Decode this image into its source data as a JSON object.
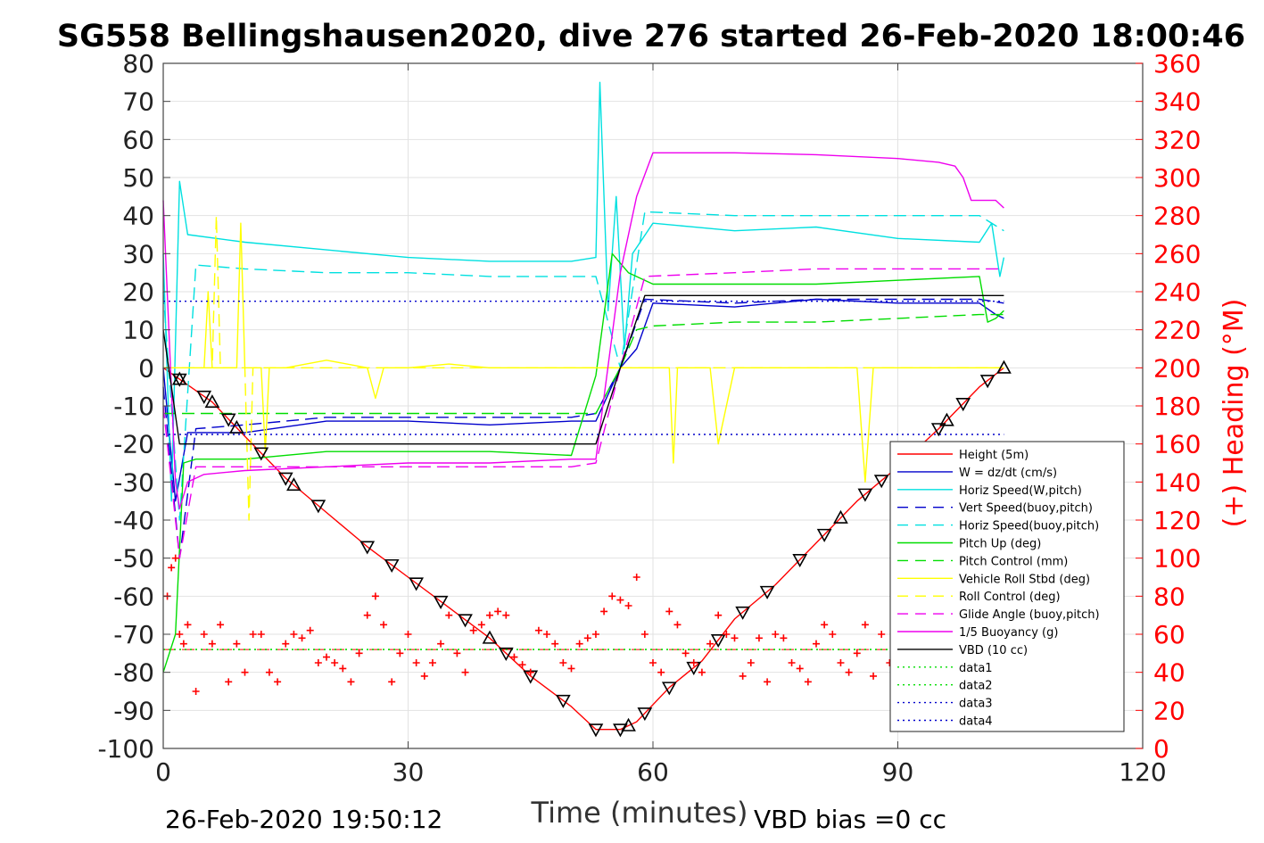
{
  "window": {
    "title": "SG558 Bellingshausen2020, dive 276 started 26-Feb-2020 18:00:46"
  },
  "footer": {
    "timestamp": "26-Feb-2020 19:50:12",
    "vbd_bias": "VBD bias =0 cc"
  },
  "chart_data": {
    "type": "line",
    "title": "SG558 Bellingshausen2020, dive 276 started 26-Feb-2020 18:00:46",
    "xlabel": "Time (minutes)",
    "ylabel": "",
    "ylabel_right": "(+) Heading (°M)",
    "xlim": [
      0,
      120
    ],
    "ylim": [
      -100,
      80
    ],
    "ylim_right": [
      0,
      360
    ],
    "xticks": [
      0,
      30,
      60,
      90,
      120
    ],
    "yticks": [
      -100,
      -90,
      -80,
      -70,
      -60,
      -50,
      -40,
      -30,
      -20,
      -10,
      0,
      10,
      20,
      30,
      40,
      50,
      60,
      70,
      80
    ],
    "yticks_right": [
      0,
      20,
      40,
      60,
      80,
      100,
      120,
      140,
      160,
      180,
      200,
      220,
      240,
      260,
      280,
      300,
      320,
      340,
      360
    ],
    "grid": true,
    "legend_position": "bottom-right",
    "colors": {
      "red": "#ff0000",
      "blue": "#0000cc",
      "cyan": "#00e0e0",
      "green": "#00dd00",
      "yellow": "#ffff00",
      "magenta": "#ee00ee",
      "black": "#000000"
    },
    "series": [
      {
        "name": "Height (5m)",
        "color": "#ff0000",
        "style": "solid",
        "x": [
          0,
          2,
          6,
          10,
          15,
          20,
          25,
          30,
          35,
          40,
          45,
          50,
          53,
          56,
          58,
          62,
          66,
          70,
          75,
          80,
          85,
          90,
          95,
          100,
          103
        ],
        "y": [
          0,
          -3,
          -9,
          -18,
          -29,
          -38,
          -47,
          -55,
          -63,
          -71,
          -81,
          -89,
          -95,
          -95,
          -93,
          -84,
          -77,
          -66,
          -57,
          -46,
          -35,
          -26,
          -16,
          -5,
          0
        ]
      },
      {
        "name": "W = dz/dt (cm/s)",
        "color": "#0000cc",
        "style": "solid",
        "x": [
          0,
          1.5,
          3,
          10,
          20,
          30,
          40,
          50,
          53,
          56,
          58,
          60,
          70,
          80,
          90,
          100,
          102,
          103
        ],
        "y": [
          0,
          -35,
          -17,
          -17,
          -14,
          -14,
          -15,
          -14,
          -14,
          0,
          5,
          17,
          16,
          18,
          17,
          17,
          14,
          13
        ]
      },
      {
        "name": "Horiz Speed(W,pitch)",
        "color": "#00e0e0",
        "style": "solid",
        "x": [
          0,
          1,
          2,
          3,
          10,
          20,
          30,
          40,
          50,
          53,
          53.5,
          54.5,
          55.5,
          56.5,
          57.5,
          60,
          70,
          80,
          90,
          100,
          101.5,
          102.5,
          103
        ],
        "y": [
          30,
          -35,
          49,
          35,
          33,
          31,
          29,
          28,
          28,
          29,
          75,
          15,
          45,
          5,
          30,
          38,
          36,
          37,
          34,
          33,
          38,
          24,
          29
        ]
      },
      {
        "name": "Vert Speed(buoy,pitch)",
        "color": "#0000cc",
        "style": "dashed",
        "x": [
          0,
          2,
          4,
          10,
          20,
          30,
          40,
          50,
          53,
          56,
          59,
          70,
          80,
          90,
          100,
          103
        ],
        "y": [
          -5,
          -50,
          -16,
          -15,
          -13,
          -13,
          -13,
          -13,
          -12,
          0,
          18,
          17,
          18,
          18,
          18,
          17
        ]
      },
      {
        "name": "Horiz Speed(buoy,pitch)",
        "color": "#00e0e0",
        "style": "dashed",
        "x": [
          0,
          2,
          4,
          10,
          20,
          30,
          40,
          50,
          53,
          56,
          59,
          70,
          80,
          90,
          100,
          103
        ],
        "y": [
          20,
          -40,
          27,
          26,
          25,
          25,
          24,
          24,
          24,
          0,
          41,
          40,
          40,
          40,
          40,
          36
        ]
      },
      {
        "name": "Pitch Up (deg)",
        "color": "#00dd00",
        "style": "solid",
        "x": [
          0,
          1.5,
          2.5,
          4,
          10,
          20,
          30,
          40,
          50,
          53,
          55,
          57,
          60,
          70,
          80,
          90,
          100,
          101,
          102,
          103
        ],
        "y": [
          -80,
          -70,
          -25,
          -24,
          -24,
          -22,
          -22,
          -22,
          -23,
          -2,
          30,
          25,
          22,
          22,
          22,
          23,
          24,
          12,
          13,
          15
        ]
      },
      {
        "name": "Pitch Control (mm)",
        "color": "#00dd00",
        "style": "dashed",
        "x": [
          0,
          2,
          10,
          20,
          30,
          40,
          50,
          53,
          56,
          58,
          60,
          70,
          80,
          90,
          100,
          103
        ],
        "y": [
          -12,
          -12,
          -12,
          -12,
          -12,
          -12,
          -12,
          -12,
          0,
          10,
          11,
          12,
          12,
          13,
          14,
          14
        ]
      },
      {
        "name": "Vehicle Roll Stbd (deg)",
        "color": "#ffff00",
        "style": "solid",
        "x": [
          0,
          3,
          5,
          5.5,
          6,
          9,
          9.5,
          10,
          12,
          12.5,
          13,
          15,
          20,
          25,
          26,
          27,
          30,
          35,
          40,
          45,
          50,
          55,
          60,
          62,
          62.5,
          63,
          67,
          68,
          70,
          80,
          85,
          86,
          87,
          90,
          95,
          100,
          103
        ],
        "y": [
          0,
          0,
          0,
          20,
          0,
          0,
          38,
          0,
          0,
          -22,
          0,
          0,
          2,
          0,
          -8,
          0,
          0,
          1,
          0,
          0,
          0,
          0,
          0,
          0,
          -25,
          0,
          0,
          -20,
          0,
          0,
          0,
          -30,
          0,
          0,
          0,
          0,
          0
        ]
      },
      {
        "name": "Roll Control (deg)",
        "color": "#ffff00",
        "style": "dashed",
        "x": [
          0,
          3,
          6,
          6.5,
          7,
          10,
          10.5,
          11,
          15,
          20,
          30,
          40,
          50,
          53,
          60,
          70,
          80,
          90,
          100,
          103
        ],
        "y": [
          0,
          0,
          0,
          40,
          0,
          0,
          -40,
          0,
          0,
          0,
          0,
          0,
          0,
          0,
          0,
          0,
          0,
          0,
          0,
          0
        ]
      },
      {
        "name": "Glide Angle (buoy,pitch)",
        "color": "#ee00ee",
        "style": "dashed",
        "x": [
          0,
          2,
          4,
          10,
          20,
          30,
          40,
          50,
          53,
          56,
          59,
          70,
          80,
          90,
          100,
          103
        ],
        "y": [
          -10,
          -50,
          -26,
          -26,
          -26,
          -26,
          -26,
          -26,
          -25,
          0,
          24,
          25,
          26,
          26,
          26,
          26
        ]
      },
      {
        "name": "1/5 Buoyancy (g)",
        "color": "#ee00ee",
        "style": "solid",
        "x": [
          0,
          1.5,
          2,
          3,
          5,
          10,
          20,
          30,
          40,
          50,
          53,
          56,
          58,
          60,
          70,
          80,
          90,
          95,
          97,
          98,
          99,
          101,
          102,
          103
        ],
        "y": [
          44,
          -30,
          -37,
          -30,
          -28,
          -27,
          -26,
          -25,
          -25,
          -24,
          -24,
          25,
          45,
          56.5,
          56.5,
          56,
          55,
          54,
          53,
          50,
          44,
          44,
          44,
          42
        ]
      },
      {
        "name": "VBD (10 cc)",
        "color": "#000000",
        "style": "solid",
        "x": [
          0,
          1,
          2,
          10,
          20,
          30,
          40,
          50,
          53,
          56,
          59,
          70,
          80,
          90,
          100,
          103
        ],
        "y": [
          10,
          -5,
          -20,
          -20,
          -20,
          -20,
          -20,
          -20,
          -20,
          0,
          19,
          19,
          19,
          19,
          19,
          19
        ]
      },
      {
        "name": "data1",
        "color": "#00dd00",
        "style": "dotted",
        "x": [
          0,
          103
        ],
        "y": [
          -74,
          -74
        ]
      },
      {
        "name": "data2",
        "color": "#00dd00",
        "style": "dotted",
        "x": [
          0,
          103
        ],
        "y": [
          -74,
          -74
        ]
      },
      {
        "name": "data3",
        "color": "#0000cc",
        "style": "dotted",
        "x": [
          0,
          103
        ],
        "y": [
          17.5,
          17.5
        ]
      },
      {
        "name": "data4",
        "color": "#0000cc",
        "style": "dotted",
        "x": [
          0,
          103
        ],
        "y": [
          -17.5,
          -17.5
        ]
      }
    ],
    "heading_series": {
      "color": "#ff0000",
      "marker": "plus",
      "x": [
        0.5,
        1,
        1.5,
        2,
        2.5,
        3,
        4,
        5,
        6,
        7,
        8,
        9,
        10,
        11,
        12,
        13,
        14,
        15,
        16,
        17,
        18,
        19,
        20,
        21,
        22,
        23,
        24,
        25,
        26,
        27,
        28,
        29,
        30,
        31,
        32,
        33,
        34,
        35,
        36,
        37,
        38,
        39,
        40,
        41,
        42,
        43,
        44,
        45,
        46,
        47,
        48,
        49,
        50,
        51,
        52,
        53,
        54,
        55,
        56,
        57,
        58,
        59,
        60,
        61,
        62,
        63,
        64,
        65,
        66,
        67,
        68,
        69,
        70,
        71,
        72,
        73,
        74,
        75,
        76,
        77,
        78,
        79,
        80,
        81,
        82,
        83,
        84,
        85,
        86,
        87,
        88,
        89,
        90,
        91,
        92,
        93,
        94,
        95,
        96,
        97,
        98,
        99,
        100,
        101,
        102,
        103
      ],
      "y": [
        80,
        95,
        100,
        60,
        55,
        65,
        30,
        60,
        55,
        65,
        35,
        55,
        40,
        60,
        60,
        40,
        35,
        55,
        60,
        58,
        62,
        45,
        48,
        45,
        42,
        35,
        50,
        70,
        80,
        65,
        35,
        50,
        60,
        45,
        38,
        45,
        55,
        70,
        50,
        40,
        62,
        65,
        70,
        72,
        70,
        48,
        44,
        40,
        62,
        60,
        55,
        45,
        42,
        55,
        58,
        60,
        72,
        80,
        78,
        75,
        90,
        60,
        45,
        40,
        72,
        65,
        50,
        45,
        40,
        55,
        70,
        60,
        58,
        38,
        45,
        58,
        35,
        60,
        58,
        45,
        42,
        35,
        55,
        65,
        60,
        45,
        40,
        50,
        65,
        38,
        60,
        45,
        40,
        58,
        55,
        65,
        38,
        40,
        60,
        55,
        50,
        48,
        45,
        40,
        45,
        55
      ]
    },
    "heading_reference": {
      "color": "#ff0000",
      "style": "dashed",
      "value": 52,
      "x": [
        0,
        103
      ]
    },
    "markers": {
      "down_triangles": {
        "x": [
          2,
          5,
          8,
          12,
          15,
          19,
          25,
          28,
          31,
          34,
          37,
          42,
          45,
          49,
          53,
          56,
          59,
          62,
          65,
          68,
          71,
          74,
          78,
          81,
          86,
          88,
          91,
          95,
          98,
          101
        ],
        "on": "Height (5m)"
      },
      "up_triangles": {
        "x": [
          2,
          6,
          9,
          16,
          40,
          57,
          83,
          96,
          103
        ],
        "on": "Height (5m)"
      }
    }
  }
}
